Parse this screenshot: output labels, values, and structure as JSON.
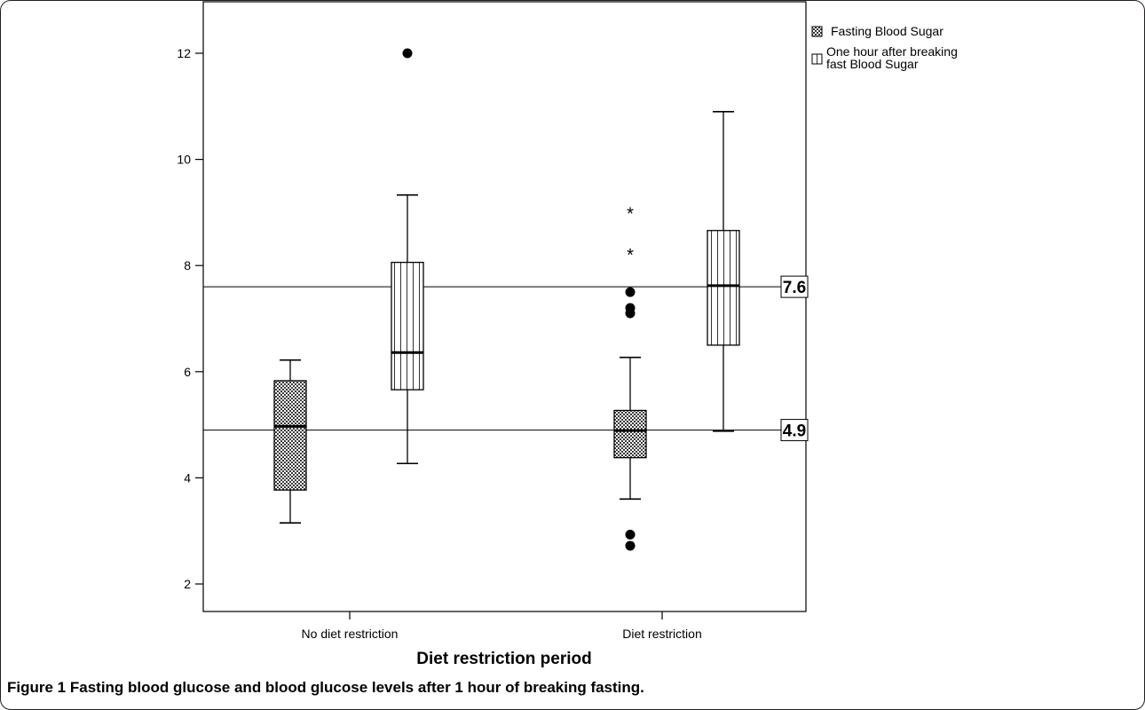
{
  "chart_data": {
    "type": "box",
    "xlabel": "Diet restriction period",
    "ylabel": "",
    "ylim": [
      1.5,
      12.6
    ],
    "yticks": [
      2,
      4,
      6,
      8,
      10,
      12
    ],
    "grid": false,
    "legend_position": "top-right",
    "categories": [
      "No diet restriction",
      "Diet restriction"
    ],
    "series": [
      {
        "name": "Fasting Blood Sugar",
        "pattern": "crosshatch",
        "boxes": [
          {
            "category": "No diet restriction",
            "whisker_low": 3.15,
            "q1": 3.77,
            "median": 4.97,
            "q3": 5.83,
            "whisker_high": 6.22,
            "outliers": [],
            "extremes": []
          },
          {
            "category": "Diet restriction",
            "whisker_low": 3.6,
            "q1": 4.38,
            "median": 4.89,
            "q3": 5.27,
            "whisker_high": 6.27,
            "outliers": [
              7.5,
              7.2,
              7.1,
              2.93,
              2.72
            ],
            "extremes": [
              9.0,
              8.22
            ]
          }
        ]
      },
      {
        "name": "One hour after breaking fast Blood Sugar",
        "pattern": "vertical-lines",
        "boxes": [
          {
            "category": "No diet restriction",
            "whisker_low": 4.27,
            "q1": 5.66,
            "median": 6.36,
            "q3": 8.06,
            "whisker_high": 9.33,
            "outliers": [
              12.0
            ],
            "extremes": []
          },
          {
            "category": "Diet restriction",
            "whisker_low": 4.88,
            "q1": 6.5,
            "median": 7.62,
            "q3": 8.66,
            "whisker_high": 10.9,
            "outliers": [],
            "extremes": []
          }
        ]
      }
    ],
    "reference_lines": [
      {
        "value": 7.6,
        "label": "7.6"
      },
      {
        "value": 4.9,
        "label": "4.9"
      }
    ]
  },
  "legend": {
    "item_1": "Fasting Blood Sugar",
    "item_2_line1": "One hour after breaking",
    "item_2_line2": "fast Blood Sugar"
  },
  "caption": {
    "label": "Figure 1",
    "text": "Fasting blood glucose and blood glucose levels after 1 hour of breaking fasting."
  }
}
